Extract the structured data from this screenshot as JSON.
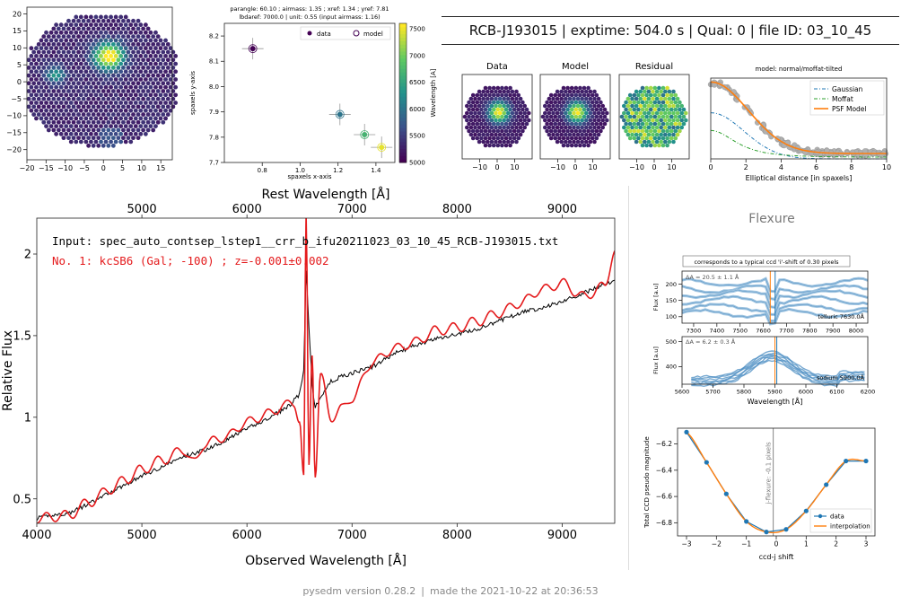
{
  "header": {
    "title": "RCB-J193015 | exptime: 504.0 s | Qual: 0 | file ID: 03_10_45"
  },
  "footer": {
    "version": "pysedm version 0.28.2",
    "made": "made the 2021-10-22 at 20:36:53"
  },
  "flexure_section": {
    "title": "Flexure"
  },
  "colors": {
    "spectrum_data": "#000000",
    "spectrum_fit": "#e41a1c",
    "viridis_dark": "#440154",
    "viridis_mid": "#21918c",
    "viridis_bright": "#fde725",
    "flexure_blue": "#1f77b4",
    "flexure_orange": "#ff7f0e",
    "moffat_green": "#2ca02c"
  },
  "chart_data": [
    {
      "id": "ifu-cube",
      "type": "heatmap",
      "xlim": [
        -20,
        18
      ],
      "ylim": [
        -23,
        22
      ],
      "xticks": [
        -20,
        -15,
        -10,
        -5,
        0,
        5,
        10,
        15
      ],
      "yticks": [
        -20,
        -15,
        -10,
        -5,
        0,
        5,
        10,
        15,
        20
      ],
      "tick_labels_x": [
        "−20",
        "−15",
        "−10",
        "−5",
        "0",
        "5",
        "10",
        "15"
      ],
      "tick_labels_y": [
        "−20",
        "−15",
        "−10",
        "−5",
        "0",
        "5",
        "10",
        "15",
        "20"
      ],
      "sources": [
        {
          "x": 1.5,
          "y": 7.5,
          "peak": "bright"
        },
        {
          "x": -12.5,
          "y": 2,
          "peak": "mid"
        }
      ]
    },
    {
      "id": "adr",
      "type": "scatter",
      "title_lines": [
        "parangle: 60.10 ; airmass: 1.35 ; xref: 1.34 ; yref: 7.81",
        "lbdaref: 7000.0 | unit: 0.55 (input airmass: 1.16)"
      ],
      "xlabel": "spaxels x-axis",
      "ylabel": "spaxels y-axis",
      "colorbar_label": "Wavelength [A]",
      "xlim": [
        0.6,
        1.5
      ],
      "ylim": [
        7.7,
        8.25
      ],
      "xticks": [
        0.8,
        1.0,
        1.2,
        1.4
      ],
      "yticks": [
        7.7,
        7.8,
        7.9,
        8.0,
        8.1,
        8.2
      ],
      "tick_labels_x": [
        "0.8",
        "1.0",
        "1.2",
        "1.4"
      ],
      "tick_labels_y": [
        "7.7",
        "7.8",
        "7.9",
        "8.0",
        "8.1",
        "8.2"
      ],
      "colorbar_ticks": [
        5000,
        5500,
        6000,
        6500,
        7000,
        7500
      ],
      "colorbar_tick_labels": [
        "5000",
        "5500",
        "6000",
        "6500",
        "7000",
        "7500"
      ],
      "legend": [
        "data",
        "model"
      ],
      "legend_position": "top-right",
      "points": [
        {
          "x": 0.75,
          "y": 8.15,
          "wl": 5000
        },
        {
          "x": 1.21,
          "y": 7.89,
          "wl": 6000
        },
        {
          "x": 1.34,
          "y": 7.81,
          "wl": 6700
        },
        {
          "x": 1.43,
          "y": 7.76,
          "wl": 7500
        }
      ]
    },
    {
      "id": "psf-maps",
      "type": "heatmap",
      "panels": [
        "Data",
        "Model",
        "Residual"
      ],
      "xticks": [
        -10,
        0,
        10
      ],
      "tick_labels_x": [
        "−10",
        "0",
        "10"
      ]
    },
    {
      "id": "psf-profile",
      "type": "line",
      "title": "model: normal/moffat-tilted",
      "xlabel": "Elliptical distance [in spaxels]",
      "xlim": [
        0,
        10
      ],
      "xticks": [
        0,
        2,
        4,
        6,
        8,
        10
      ],
      "tick_labels_x": [
        "0",
        "2",
        "4",
        "6",
        "8",
        "10"
      ],
      "legend": [
        "Gaussian",
        "Moffat",
        "PSF Model"
      ],
      "legend_position": "top-right"
    },
    {
      "id": "spectrum",
      "type": "line",
      "xlabel": "Observed Wavelength [Å]",
      "ylabel": "Relative Flux",
      "top_xlabel": "Rest Wavelength [Å]",
      "annotation_input": "Input: spec_auto_contsep_lstep1__crr_b_ifu20211023_03_10_45_RCB-J193015.txt",
      "annotation_match": "No.           1: kcSB6 (Gal;           -100) ; z=-0.001±0.002",
      "xlim": [
        4000,
        9500
      ],
      "ylim": [
        0.35,
        2.22
      ],
      "xticks": [
        4000,
        5000,
        6000,
        7000,
        8000,
        9000
      ],
      "yticks": [
        0.5,
        1.0,
        1.5,
        2.0
      ],
      "tick_labels_x": [
        "4000",
        "5000",
        "6000",
        "7000",
        "8000",
        "9000"
      ],
      "tick_labels_y": [
        "0.5",
        "1",
        "1.5",
        "2"
      ],
      "top_xticks": [
        5000,
        6000,
        7000,
        8000,
        9000
      ],
      "top_tick_labels": [
        "5000",
        "6000",
        "7000",
        "8000",
        "9000"
      ],
      "series": [
        {
          "name": "data",
          "x": [
            4000,
            4150,
            4300,
            4500,
            4700,
            4850,
            5000,
            5200,
            5400,
            5600,
            5800,
            6000,
            6200,
            6400,
            6500,
            6540,
            6563,
            6590,
            6620,
            6650,
            6700,
            6800,
            6900,
            7000,
            7200,
            7400,
            7600,
            7800,
            8000,
            8200,
            8400,
            8600,
            8800,
            9000,
            9200,
            9500
          ],
          "y": [
            0.38,
            0.4,
            0.41,
            0.47,
            0.54,
            0.59,
            0.64,
            0.7,
            0.76,
            0.8,
            0.86,
            0.93,
            0.99,
            1.07,
            1.14,
            1.28,
            1.9,
            1.55,
            1.2,
            1.06,
            1.12,
            1.22,
            1.25,
            1.27,
            1.31,
            1.39,
            1.44,
            1.48,
            1.51,
            1.54,
            1.59,
            1.64,
            1.67,
            1.71,
            1.76,
            1.84
          ]
        },
        {
          "name": "fit",
          "x": [
            4000,
            4150,
            4300,
            4500,
            4700,
            4850,
            5000,
            5200,
            5400,
            5500,
            5600,
            5800,
            6000,
            6200,
            6350,
            6450,
            6500,
            6540,
            6563,
            6590,
            6620,
            6650,
            6700,
            6800,
            6900,
            7000,
            7200,
            7400,
            7600,
            7800,
            8000,
            8200,
            8400,
            8600,
            8800,
            9000,
            9200,
            9400,
            9500
          ],
          "y": [
            0.38,
            0.39,
            0.4,
            0.48,
            0.56,
            0.62,
            0.68,
            0.74,
            0.8,
            0.72,
            0.84,
            0.88,
            0.97,
            1.02,
            1.07,
            1.09,
            0.98,
            0.62,
            2.22,
            0.7,
            1.4,
            0.66,
            1.25,
            1.0,
            1.05,
            1.12,
            1.34,
            1.42,
            1.46,
            1.53,
            1.55,
            1.59,
            1.64,
            1.7,
            1.78,
            1.82,
            1.74,
            1.8,
            2.02
          ]
        }
      ]
    },
    {
      "id": "flexure-telluric",
      "type": "line",
      "banner": "corresponds to a typical ccd 'i'-shift of 0.30 pixels",
      "ylabel": "Flux [a.u]",
      "annotation": "ΔA = 20.5 ± 1.1 Å",
      "line_label": "telluric 7630.0Å",
      "xlim": [
        7250,
        8050
      ],
      "ylim": [
        80,
        240
      ],
      "xticks": [
        7300,
        7400,
        7500,
        7600,
        7700,
        7800,
        7900,
        8000
      ],
      "yticks": [
        100,
        150,
        200
      ],
      "tick_labels_x": [
        "7300",
        "7400",
        "7500",
        "7600",
        "7700",
        "7800",
        "7900",
        "8000"
      ],
      "tick_labels_y": [
        "100",
        "150",
        "200"
      ],
      "vlines": [
        7630,
        7651
      ]
    },
    {
      "id": "flexure-sodium",
      "type": "line",
      "xlabel": "Wavelength [Å]",
      "ylabel": "Flux [a.u]",
      "annotation": "ΔA = 6.2 ± 0.3 Å",
      "line_label": "sodium 5900.0Å",
      "xlim": [
        5600,
        6200
      ],
      "ylim": [
        330,
        520
      ],
      "xticks": [
        5600,
        5700,
        5800,
        5900,
        6000,
        6100,
        6200
      ],
      "yticks": [
        400,
        500
      ],
      "tick_labels_x": [
        "5600",
        "5700",
        "5800",
        "5900",
        "6000",
        "6100",
        "6200"
      ],
      "tick_labels_y": [
        "400",
        "500"
      ],
      "vlines": [
        5900,
        5906
      ]
    },
    {
      "id": "flexure-ccd",
      "type": "line",
      "xlabel": "ccd-j shift",
      "ylabel": "Total CCD pseudo magnitude",
      "vline_label": "j-flexure: -0.1 pixels",
      "vline_x": -0.1,
      "legend": [
        "data",
        "interpolation"
      ],
      "legend_position": "bottom-right",
      "xlim": [
        -3.3,
        3.3
      ],
      "ylim": [
        -6.9,
        -6.08
      ],
      "xticks": [
        -3,
        -2,
        -1,
        0,
        1,
        2,
        3
      ],
      "yticks": [
        -6.8,
        -6.6,
        -6.4,
        -6.2
      ],
      "tick_labels_x": [
        "−3",
        "−2",
        "−1",
        "0",
        "1",
        "2",
        "3"
      ],
      "tick_labels_y": [
        "−6.8",
        "−6.6",
        "−6.4",
        "−6.2"
      ],
      "series": [
        {
          "name": "data",
          "x": [
            -3,
            -2.33,
            -1.67,
            -1,
            -0.33,
            0.33,
            1,
            1.67,
            2.33,
            3
          ],
          "y": [
            -6.11,
            -6.34,
            -6.58,
            -6.79,
            -6.87,
            -6.85,
            -6.71,
            -6.51,
            -6.33,
            -6.33
          ]
        }
      ]
    }
  ]
}
